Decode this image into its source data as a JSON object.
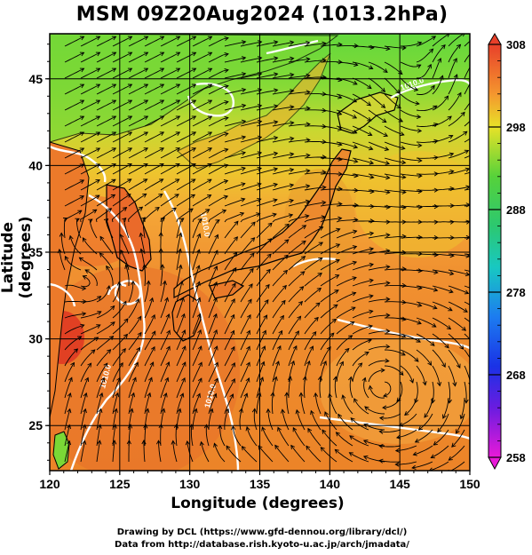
{
  "title": "MSM 09Z20Aug2024 (1013.2hPa)",
  "x_axis": {
    "label": "Longitude (degrees)",
    "range": [
      120,
      150
    ],
    "ticks": [
      "120",
      "125",
      "130",
      "135",
      "140",
      "145",
      "150"
    ]
  },
  "y_axis": {
    "label": "Latitude  (degrees)",
    "range": [
      22.4,
      47.6
    ],
    "ticks": [
      "25",
      "30",
      "35",
      "40",
      "45"
    ]
  },
  "colorbar": {
    "range": [
      258,
      308
    ],
    "ticks": [
      "308",
      "298",
      "288",
      "278",
      "268",
      "258"
    ]
  },
  "contour_labels": [
    "1010.0",
    "1010.0",
    "1010.0",
    "1010.0"
  ],
  "credits": {
    "line1": "Drawing by DCL (https://www.gfd-dennou.org/library/dcl/)",
    "line2": "Data from http://database.rish.kyoto-u.ac.jp/arch/jmadata/"
  },
  "colors": {
    "land_green": "#5fd23c",
    "warm_orange": "#f08a2c",
    "hot_red": "#e84a24",
    "sea_orange": "#f6a93a",
    "yellow": "#e8dc2c",
    "contour_white": "#ffffff",
    "streamline": "#000000"
  }
}
